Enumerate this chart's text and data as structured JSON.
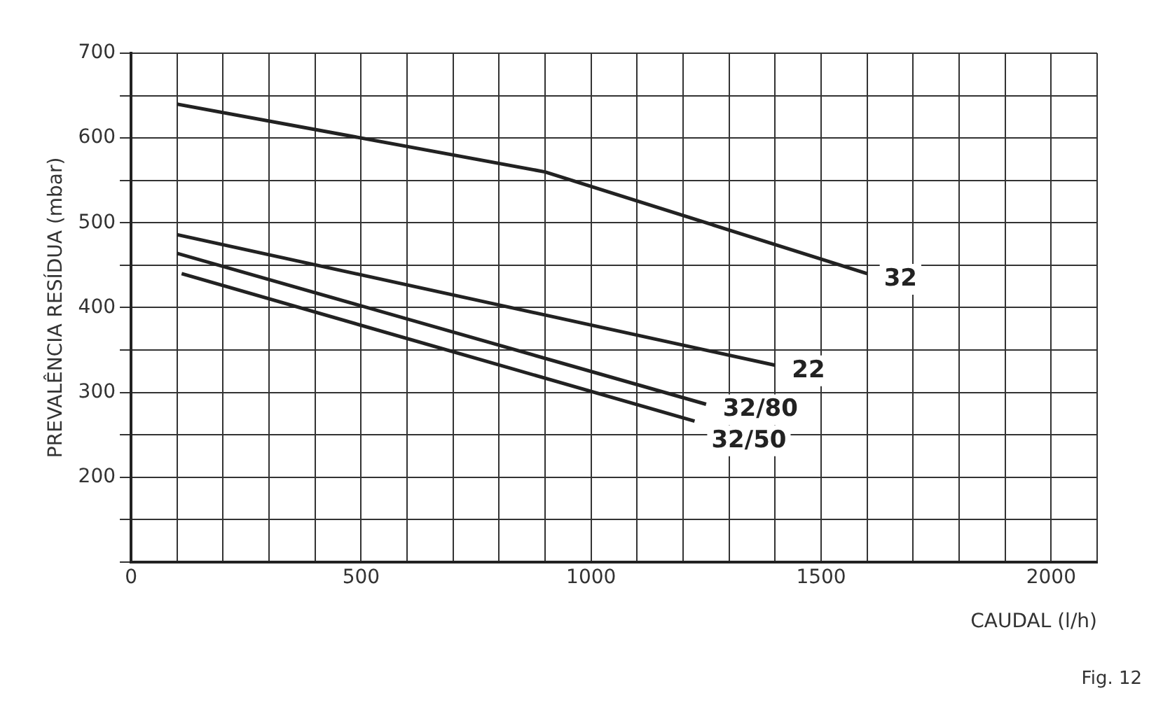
{
  "chart_data": {
    "type": "line",
    "xlabel": "CAUDAL (l/h)",
    "ylabel": "PREVALÊNCIA RESÍDUA (mbar)",
    "annotations": [
      "Fig. 12"
    ],
    "series": [
      {
        "name": "32",
        "color": "#222222",
        "x": [
          100,
          900,
          1600
        ],
        "values": [
          640,
          560,
          440
        ]
      },
      {
        "name": "22",
        "color": "#222222",
        "x": [
          100,
          1400
        ],
        "values": [
          486,
          332
        ]
      },
      {
        "name": "32/80",
        "color": "#222222",
        "x": [
          100,
          1250
        ],
        "values": [
          464,
          286
        ]
      },
      {
        "name": "32/50",
        "color": "#222222",
        "x": [
          110,
          1225
        ],
        "values": [
          440,
          266
        ]
      }
    ],
    "xlim": [
      0,
      2100
    ],
    "xticks": [
      0,
      {
        "value": 100,
        "label": null
      },
      {
        "value": 200,
        "label": null
      },
      {
        "value": 300,
        "label": null
      },
      {
        "value": 400,
        "label": null
      },
      500,
      {
        "value": 600,
        "label": null
      },
      {
        "value": 700,
        "label": null
      },
      {
        "value": 800,
        "label": null
      },
      {
        "value": 900,
        "label": null
      },
      1000,
      {
        "value": 1100,
        "label": null
      },
      {
        "value": 1200,
        "label": null
      },
      {
        "value": 1300,
        "label": null
      },
      {
        "value": 1400,
        "label": null
      },
      1500,
      {
        "value": 1600,
        "label": null
      },
      {
        "value": 1700,
        "label": null
      },
      {
        "value": 1800,
        "label": null
      },
      {
        "value": 1900,
        "label": null
      },
      2000,
      {
        "value": 2100,
        "label": null
      }
    ],
    "ylim": [
      100,
      700
    ],
    "yticks": [
      {
        "value": 100,
        "label": null
      },
      {
        "value": 150,
        "label": null
      },
      200,
      {
        "value": 250,
        "label": null
      },
      300,
      {
        "value": 350,
        "label": null
      },
      400,
      {
        "value": 450,
        "label": null
      },
      500,
      {
        "value": 550,
        "label": null
      },
      600,
      {
        "value": 650,
        "label": null
      },
      700
    ],
    "grid": true,
    "legend": false,
    "marker": "none",
    "line_style": "solid"
  }
}
